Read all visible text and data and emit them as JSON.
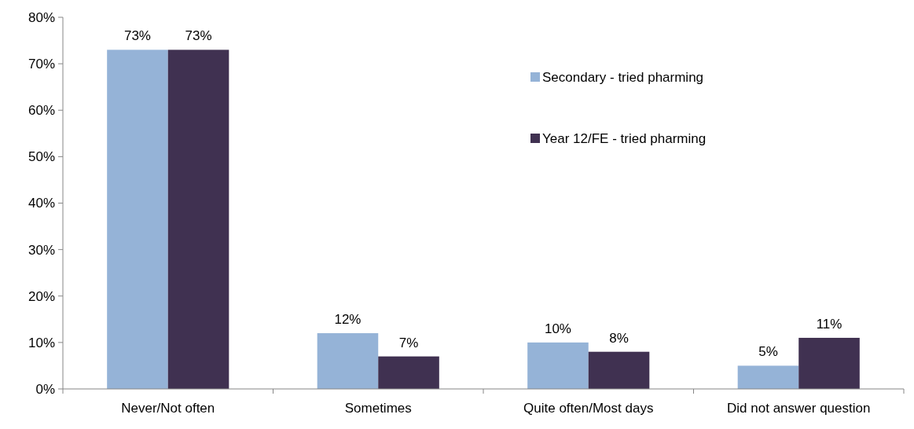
{
  "chart_data": {
    "type": "bar",
    "categories": [
      "Never/Not often",
      "Sometimes",
      "Quite often/Most days",
      "Did not answer question"
    ],
    "series": [
      {
        "name": "Secondary - tried pharming",
        "color": "#95b3d7",
        "values": [
          73,
          12,
          10,
          5
        ],
        "value_labels": [
          "73%",
          "12%",
          "10%",
          "5%"
        ]
      },
      {
        "name": "Year 12/FE - tried pharming",
        "color": "#403151",
        "values": [
          73,
          7,
          8,
          11
        ],
        "value_labels": [
          "73%",
          "7%",
          "8%",
          "11%"
        ]
      }
    ],
    "ylim": [
      0,
      80
    ],
    "yticks": [
      {
        "value": 0,
        "label": "0%"
      },
      {
        "value": 10,
        "label": "10%"
      },
      {
        "value": 20,
        "label": "20%"
      },
      {
        "value": 30,
        "label": "30%"
      },
      {
        "value": 40,
        "label": "40%"
      },
      {
        "value": 50,
        "label": "50%"
      },
      {
        "value": 60,
        "label": "60%"
      },
      {
        "value": 70,
        "label": "70%"
      },
      {
        "value": 80,
        "label": "80%"
      }
    ],
    "grid": false,
    "legend": "top right"
  }
}
